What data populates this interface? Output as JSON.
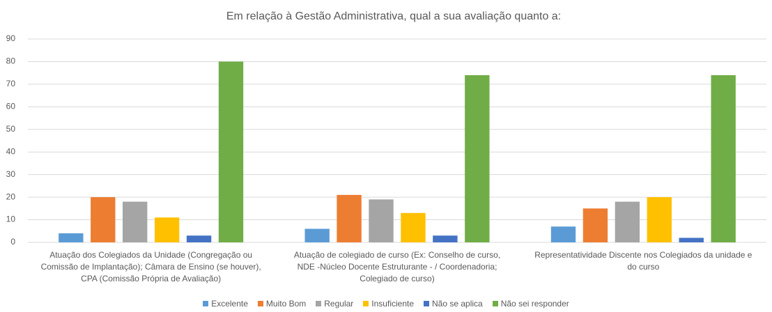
{
  "chart_data": {
    "type": "bar",
    "title": "Em relação à Gestão Administrativa, qual a sua avaliação quanto a:",
    "categories": [
      "Atuação dos Colegiados da Unidade (Congregação ou Comissão de Implantação); Câmara de Ensino (se houver), CPA (Comissão Própria de Avaliação)",
      "Atuação de colegiado de curso (Ex: Conselho de curso, NDE -Núcleo Docente Estruturante - / Coordenadoria; Colegiado de curso)",
      "Representatividade Discente nos Colegiados da unidade e do curso"
    ],
    "series": [
      {
        "name": "Excelente",
        "color": "#5b9bd5",
        "values": [
          4,
          6,
          7
        ]
      },
      {
        "name": "Muito Bom",
        "color": "#ed7d31",
        "values": [
          20,
          21,
          15
        ]
      },
      {
        "name": "Regular",
        "color": "#a5a5a5",
        "values": [
          18,
          19,
          18
        ]
      },
      {
        "name": "Insuficiente",
        "color": "#ffc000",
        "values": [
          11,
          13,
          20
        ]
      },
      {
        "name": "Não se aplica",
        "color": "#4472c4",
        "values": [
          3,
          3,
          2
        ]
      },
      {
        "name": "Não sei responder",
        "color": "#70ad47",
        "values": [
          80,
          74,
          74
        ]
      }
    ],
    "ylim": [
      0,
      90
    ],
    "yticks": [
      0,
      10,
      20,
      30,
      40,
      50,
      60,
      70,
      80,
      90
    ],
    "grid": true,
    "legend": "bottom"
  }
}
